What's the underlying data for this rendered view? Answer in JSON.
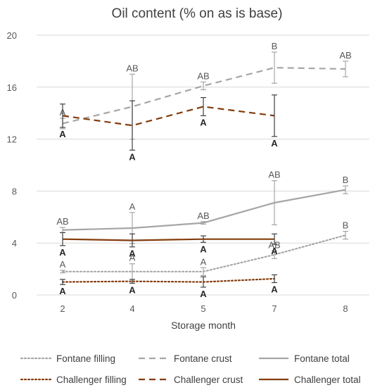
{
  "chart_data": {
    "type": "line",
    "title": "Oil content (% on as is base)",
    "xlabel": "Storage month",
    "ylabel": "",
    "categories": [
      "2",
      "4",
      "5",
      "7",
      "8"
    ],
    "ylim": [
      0,
      20
    ],
    "yticks": [
      0,
      4,
      8,
      12,
      16,
      20
    ],
    "grid": true,
    "legend_position": "bottom",
    "series": [
      {
        "name": "Fontane filling",
        "color": "#a6a6a6",
        "dash": "dotted",
        "values": [
          1.8,
          1.8,
          1.8,
          3.1,
          4.6
        ],
        "errors": [
          0.1,
          0.6,
          0.3,
          0.3,
          0.3
        ],
        "letters": [
          "A",
          "A",
          "A",
          "AB",
          "B"
        ],
        "letter_side": "above",
        "letter_bold": false
      },
      {
        "name": "Fontane crust",
        "color": "#a6a6a6",
        "dash": "dashed",
        "values": [
          13.2,
          14.5,
          16.1,
          17.5,
          17.4
        ],
        "errors": [
          0.4,
          2.5,
          0.3,
          1.2,
          0.6
        ],
        "letters": [
          "A",
          "AB",
          "AB",
          "B",
          "AB"
        ],
        "letter_side": "above",
        "letter_bold": false
      },
      {
        "name": "Fontane total",
        "color": "#a6a6a6",
        "dash": "solid",
        "values": [
          5.0,
          5.15,
          5.55,
          7.1,
          8.1
        ],
        "errors": [
          0.2,
          1.2,
          0.1,
          1.7,
          0.3
        ],
        "letters": [
          "AB",
          "A",
          "AB",
          "AB",
          "B"
        ],
        "letter_side": "above",
        "letter_bold": false
      },
      {
        "name": "Challenger filling",
        "color": "#843c0c",
        "dash": "dotted",
        "values": [
          1.0,
          1.05,
          1.0,
          1.25,
          null
        ],
        "errors": [
          0.2,
          0.15,
          0.4,
          0.3,
          null
        ],
        "letters": [
          "A",
          "A",
          "A",
          "A",
          ""
        ],
        "letter_side": "below",
        "letter_bold": true
      },
      {
        "name": "Challenger crust",
        "color": "#843c0c",
        "dash": "dashed",
        "values": [
          13.8,
          13.05,
          14.5,
          13.8,
          null
        ],
        "errors": [
          0.9,
          1.9,
          0.7,
          1.6,
          null
        ],
        "letters": [
          "A",
          "A",
          "A",
          "A",
          ""
        ],
        "letter_side": "below",
        "letter_bold": true
      },
      {
        "name": "Challenger total",
        "color": "#843c0c",
        "dash": "solid",
        "values": [
          4.3,
          4.2,
          4.3,
          4.3,
          null
        ],
        "errors": [
          0.5,
          0.5,
          0.25,
          0.4,
          null
        ],
        "letters": [
          "A",
          "A",
          "A",
          "A",
          ""
        ],
        "letter_side": "below",
        "letter_bold": true
      }
    ]
  }
}
